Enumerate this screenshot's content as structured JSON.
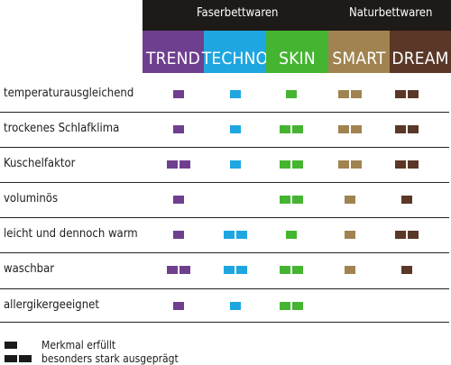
{
  "groups": [
    {
      "label": "Faserbettwaren"
    },
    {
      "label": "Naturbettwaren"
    }
  ],
  "columns": [
    {
      "label": "TREND",
      "color": "#6f3f8f"
    },
    {
      "label": "TECHNO",
      "color": "#1ea6e0"
    },
    {
      "label": "SKIN",
      "color": "#45b431"
    },
    {
      "label": "SMART",
      "color": "#a08350"
    },
    {
      "label": "DREAM",
      "color": "#5a3727"
    }
  ],
  "rows": [
    {
      "label": "temperaturausgleichend",
      "marks": [
        1,
        1,
        1,
        2,
        2
      ]
    },
    {
      "label": "trockenes Schlafklima",
      "marks": [
        1,
        1,
        2,
        2,
        2
      ]
    },
    {
      "label": "Kuschelfaktor",
      "marks": [
        2,
        1,
        2,
        2,
        2
      ]
    },
    {
      "label": "voluminös",
      "marks": [
        1,
        0,
        2,
        1,
        1
      ]
    },
    {
      "label": "leicht und dennoch  warm",
      "marks": [
        1,
        2,
        1,
        1,
        2
      ]
    },
    {
      "label": "waschbar",
      "marks": [
        2,
        2,
        2,
        1,
        1
      ]
    },
    {
      "label": "allergikergeeignet",
      "marks": [
        1,
        1,
        2,
        0,
        0
      ]
    }
  ],
  "legend": [
    {
      "count": 1,
      "label": "Merkmal erfüllt"
    },
    {
      "count": 2,
      "label": "besonders stark ausgeprägt"
    }
  ]
}
